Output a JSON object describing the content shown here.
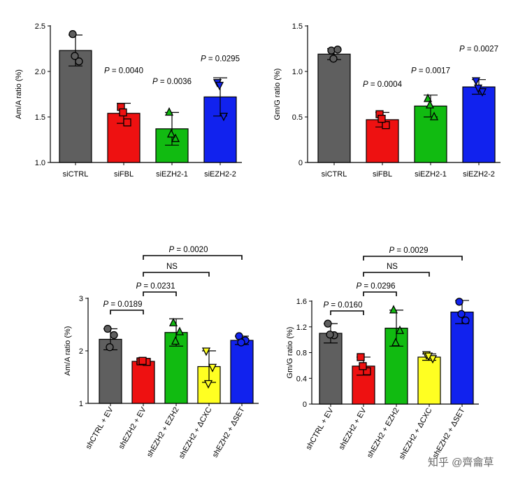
{
  "chart_data": [
    {
      "id": "panel_a",
      "type": "bar",
      "ylabel": "Am/A ratio (%)",
      "categories": [
        "siCTRL",
        "siFBL",
        "siEZH2-1",
        "siEZH2-2"
      ],
      "values": [
        2.23,
        1.54,
        1.37,
        1.72
      ],
      "errors": [
        0.17,
        0.11,
        0.18,
        0.21
      ],
      "points": [
        [
          2.41,
          2.11,
          2.17
        ],
        [
          1.61,
          1.44,
          1.55
        ],
        [
          1.55,
          1.26,
          1.31
        ],
        [
          1.88,
          1.51,
          1.85
        ]
      ],
      "ylim": [
        1.0,
        2.5
      ],
      "yticks": [
        "1.0",
        "1.5",
        "2.0",
        "2.5"
      ],
      "ytick_values": [
        1.0,
        1.5,
        2.0,
        2.5
      ],
      "colors": [
        "#5f5f5f",
        "#ee1111",
        "#11bb11",
        "#1122ee"
      ],
      "markers": [
        "circle",
        "square",
        "triangle",
        "triangle-down"
      ],
      "annotations": [
        {
          "bar": 1,
          "label": "P = 0.0040",
          "p_letter": "P",
          "p_rest": " = 0.0040",
          "y": 1.98
        },
        {
          "bar": 2,
          "label": "P = 0.0036",
          "p_letter": "P",
          "p_rest": " = 0.0036",
          "y": 1.86
        },
        {
          "bar": 3,
          "label": "P = 0.0295",
          "p_letter": "P",
          "p_rest": " = 0.0295",
          "y": 2.11
        }
      ]
    },
    {
      "id": "panel_b",
      "type": "bar",
      "ylabel": "Gm/G ratio (%)",
      "categories": [
        "siCTRL",
        "siFBL",
        "siEZH2-1",
        "siEZH2-2"
      ],
      "values": [
        1.19,
        0.47,
        0.62,
        0.83
      ],
      "errors": [
        0.06,
        0.08,
        0.12,
        0.08
      ],
      "points": [
        [
          1.23,
          1.24,
          1.14
        ],
        [
          0.53,
          0.41,
          0.48
        ],
        [
          0.7,
          0.5,
          0.63
        ],
        [
          0.9,
          0.78,
          0.82
        ]
      ],
      "ylim": [
        0,
        1.5
      ],
      "yticks": [
        "0",
        "0.5",
        "1.0",
        "1.5"
      ],
      "ytick_values": [
        0,
        0.5,
        1.0,
        1.5
      ],
      "colors": [
        "#5f5f5f",
        "#ee1111",
        "#11bb11",
        "#1122ee"
      ],
      "markers": [
        "circle",
        "square",
        "triangle",
        "triangle-down"
      ],
      "annotations": [
        {
          "bar": 1,
          "label": "P = 0.0004",
          "p_letter": "P",
          "p_rest": " = 0.0004",
          "y": 0.83
        },
        {
          "bar": 2,
          "label": "P = 0.0017",
          "p_letter": "P",
          "p_rest": " = 0.0017",
          "y": 0.98
        },
        {
          "bar": 3,
          "label": "P = 0.0027",
          "p_letter": "P",
          "p_rest": " = 0.0027",
          "y": 1.22
        }
      ]
    },
    {
      "id": "panel_c",
      "type": "bar",
      "ylabel": "Am/A ratio (%)",
      "categories": [
        "shCTRL + EV",
        "shEZH2 + EV",
        "shEZH2 + EZH2",
        "shEZH2 + ΔCXC",
        "shEZH2 + ΔSET"
      ],
      "values": [
        2.22,
        1.8,
        2.35,
        1.7,
        2.2
      ],
      "errors": [
        0.2,
        0.04,
        0.26,
        0.3,
        0.08
      ],
      "points": [
        [
          2.42,
          2.3,
          2.07
        ],
        [
          1.8,
          1.79,
          1.81
        ],
        [
          2.53,
          2.36,
          2.18
        ],
        [
          2.0,
          1.69,
          1.38
        ],
        [
          2.28,
          2.2,
          2.16
        ]
      ],
      "ylim": [
        1,
        3
      ],
      "yticks": [
        "1",
        "2",
        "3"
      ],
      "ytick_values": [
        1,
        2,
        3
      ],
      "colors": [
        "#5f5f5f",
        "#ee1111",
        "#11bb11",
        "#ffff22",
        "#1122ee"
      ],
      "markers": [
        "circle",
        "square",
        "triangle",
        "triangle-down",
        "circle"
      ],
      "brackets": [
        {
          "from": 0,
          "to": 1,
          "label": "P = 0.0189",
          "p_letter": "P",
          "p_rest": " = 0.0189",
          "level": 0
        },
        {
          "from": 1,
          "to": 2,
          "label": "P = 0.0231",
          "p_letter": "P",
          "p_rest": " = 0.0231",
          "level": 1
        },
        {
          "from": 1,
          "to": 3,
          "label": "NS",
          "p_letter": "",
          "p_rest": "NS",
          "level": 2
        },
        {
          "from": 1,
          "to": 4,
          "label": "P = 0.0020",
          "p_letter": "P",
          "p_rest": " = 0.0020",
          "level": 3
        }
      ]
    },
    {
      "id": "panel_d",
      "type": "bar",
      "ylabel": "Gm/G ratio (%)",
      "categories": [
        "shCTRL + EV",
        "shEZH2 + EV",
        "shEZH2 + EZH2",
        "shEZH2 + ΔCXC",
        "shEZH2 + ΔSET"
      ],
      "values": [
        1.1,
        0.59,
        1.18,
        0.73,
        1.43
      ],
      "errors": [
        0.15,
        0.14,
        0.28,
        0.05,
        0.18
      ],
      "points": [
        [
          1.25,
          1.07,
          1.08
        ],
        [
          0.73,
          0.51,
          0.59
        ],
        [
          1.46,
          1.14,
          0.95
        ],
        [
          0.77,
          0.71,
          0.75
        ],
        [
          1.59,
          1.3,
          1.4
        ]
      ],
      "ylim": [
        0,
        1.6
      ],
      "yticks": [
        "0",
        "0.4",
        "0.8",
        "1.2",
        "1.6"
      ],
      "ytick_values": [
        0,
        0.4,
        0.8,
        1.2,
        1.6
      ],
      "colors": [
        "#5f5f5f",
        "#ee1111",
        "#11bb11",
        "#ffff22",
        "#1122ee"
      ],
      "markers": [
        "circle",
        "square",
        "triangle",
        "triangle-down",
        "circle"
      ],
      "brackets": [
        {
          "from": 0,
          "to": 1,
          "label": "P = 0.0160",
          "p_letter": "P",
          "p_rest": " = 0.0160",
          "level": 0
        },
        {
          "from": 1,
          "to": 2,
          "label": "P = 0.0296",
          "p_letter": "P",
          "p_rest": " = 0.0296",
          "level": 1
        },
        {
          "from": 1,
          "to": 3,
          "label": "NS",
          "p_letter": "",
          "p_rest": "NS",
          "level": 2
        },
        {
          "from": 1,
          "to": 4,
          "label": "P = 0.0029",
          "p_letter": "P",
          "p_rest": " = 0.0029",
          "level": 3
        }
      ]
    }
  ],
  "watermark": "知乎 @齊龠草"
}
